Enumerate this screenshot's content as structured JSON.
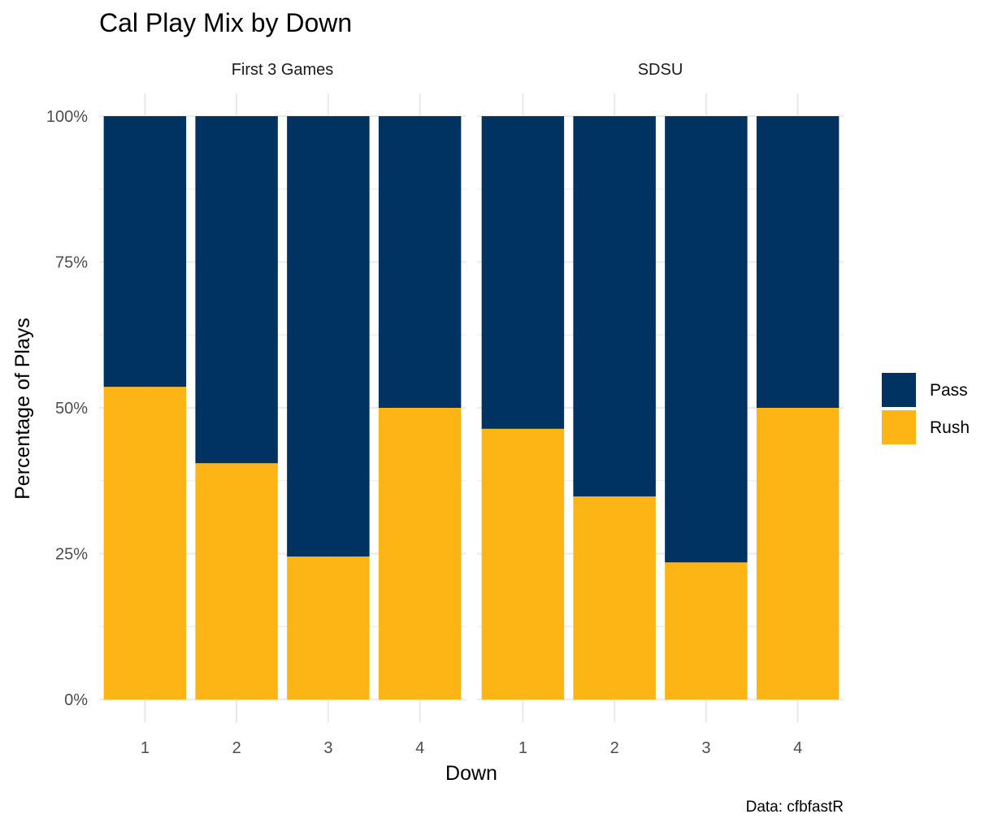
{
  "chart_data": {
    "type": "bar",
    "stacked": true,
    "title": "Cal Play Mix by Down",
    "xlabel": "Down",
    "ylabel": "Percentage of Plays",
    "caption": "Data: cfbfastR",
    "ylim": [
      0,
      1
    ],
    "y_ticks": [
      "0%",
      "25%",
      "50%",
      "75%",
      "100%"
    ],
    "grid": true,
    "legend_position": "right",
    "categories": [
      "1",
      "2",
      "3",
      "4"
    ],
    "colors": {
      "Pass": "#003262",
      "Rush": "#FDB515"
    },
    "legend": [
      "Pass",
      "Rush"
    ],
    "facets": [
      {
        "label": "First 3 Games",
        "series": [
          {
            "name": "Rush",
            "values": [
              0.536,
              0.405,
              0.245,
              0.5
            ]
          },
          {
            "name": "Pass",
            "values": [
              0.464,
              0.595,
              0.755,
              0.5
            ]
          }
        ]
      },
      {
        "label": "SDSU",
        "series": [
          {
            "name": "Rush",
            "values": [
              0.464,
              0.348,
              0.235,
              0.5
            ]
          },
          {
            "name": "Pass",
            "values": [
              0.536,
              0.652,
              0.765,
              0.5
            ]
          }
        ]
      }
    ]
  }
}
